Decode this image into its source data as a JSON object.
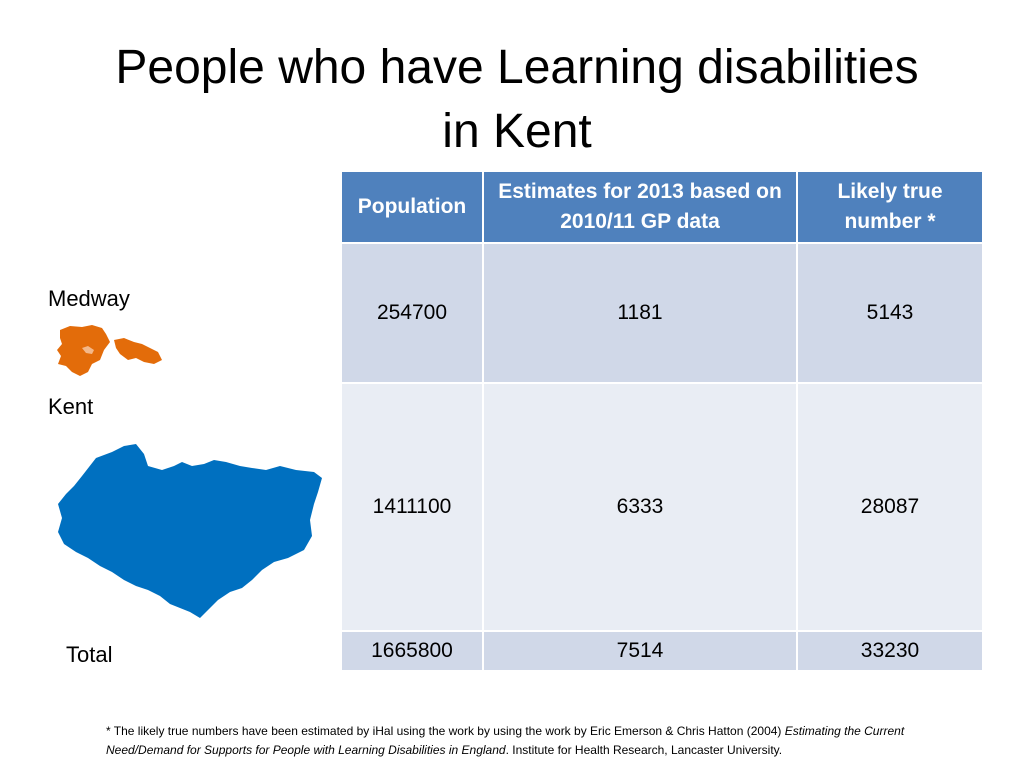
{
  "title": {
    "line1": "People who have Learning disabilities",
    "line2": "in Kent"
  },
  "table": {
    "headers": [
      "Population",
      "Estimates for 2013 based on 2010/11 GP data",
      "Likely true number *"
    ],
    "rows": [
      {
        "label": "Medway",
        "cells": [
          "254700",
          "1181",
          "5143"
        ]
      },
      {
        "label": "Kent",
        "cells": [
          "1411100",
          "6333",
          "28087"
        ]
      },
      {
        "label": "Total",
        "cells": [
          "1665800",
          "7514",
          "33230"
        ]
      }
    ]
  },
  "colors": {
    "header_bg": "#4f81bd",
    "row_dark": "#d0d8e8",
    "row_light": "#e9edf4",
    "medway_map": "#e36c0a",
    "kent_map": "#0070c0"
  },
  "footnote": {
    "part1": "* The likely true numbers have been estimated by iHal using the work by using the work by Eric Emerson & Chris Hatton (2004) ",
    "italic": "Estimating the Current Need/Demand for Supports for People with Learning Disabilities in England",
    "part2": ". Institute for Health  Research, Lancaster University."
  }
}
